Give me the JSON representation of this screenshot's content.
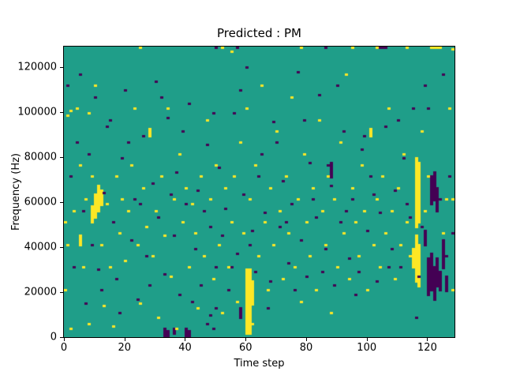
{
  "chart_data": {
    "type": "heatmap",
    "title": "Predicted : PM",
    "xlabel": "Time step",
    "ylabel": "Frequency (Hz)",
    "x_range": [
      0,
      129
    ],
    "y_range": [
      0,
      129000
    ],
    "x_ticks": [
      0,
      20,
      40,
      60,
      80,
      100,
      120
    ],
    "y_ticks": [
      0,
      20000,
      40000,
      60000,
      80000,
      100000,
      120000
    ],
    "grid_size": [
      129,
      128
    ],
    "colors": {
      "background": "#1f9e89",
      "yellow": "#fde725",
      "purple": "#440154",
      "axis": "#000000"
    },
    "yellow_runs": [
      [
        60,
        1,
        29
      ],
      [
        61,
        1,
        29
      ],
      [
        62,
        14,
        24
      ],
      [
        116,
        48,
        78
      ],
      [
        117,
        50,
        76
      ],
      [
        116,
        24,
        44
      ],
      [
        117,
        22,
        40
      ],
      [
        115,
        30,
        38
      ],
      [
        10,
        52,
        62
      ],
      [
        11,
        55,
        66
      ],
      [
        12,
        58,
        64
      ],
      [
        9,
        50,
        57
      ],
      [
        5,
        40,
        44
      ],
      [
        28,
        88,
        91
      ],
      [
        101,
        88,
        91
      ]
    ],
    "purple_runs": [
      [
        33,
        0,
        3
      ],
      [
        34,
        0,
        2
      ],
      [
        36,
        1,
        3
      ],
      [
        40,
        0,
        3
      ],
      [
        41,
        0,
        2
      ],
      [
        120,
        18,
        34
      ],
      [
        121,
        20,
        36
      ],
      [
        122,
        16,
        30
      ],
      [
        123,
        22,
        34
      ],
      [
        124,
        20,
        28
      ],
      [
        121,
        58,
        70
      ],
      [
        122,
        60,
        72
      ],
      [
        123,
        55,
        65
      ],
      [
        119,
        40,
        46
      ],
      [
        125,
        30,
        42
      ],
      [
        126,
        20,
        26
      ],
      [
        88,
        70,
        76
      ],
      [
        58,
        8,
        12
      ]
    ],
    "yellow_cells": [
      [
        0,
        20
      ],
      [
        0,
        50
      ],
      [
        1,
        40
      ],
      [
        1,
        97
      ],
      [
        2,
        3
      ],
      [
        2,
        99
      ],
      [
        3,
        55
      ],
      [
        4,
        100
      ],
      [
        5,
        75
      ],
      [
        6,
        30
      ],
      [
        7,
        60
      ],
      [
        8,
        5
      ],
      [
        8,
        98
      ],
      [
        9,
        70
      ],
      [
        10,
        110
      ],
      [
        12,
        40
      ],
      [
        13,
        13
      ],
      [
        14,
        58
      ],
      [
        15,
        30
      ],
      [
        16,
        4
      ],
      [
        17,
        70
      ],
      [
        18,
        45
      ],
      [
        19,
        60
      ],
      [
        20,
        33
      ],
      [
        21,
        55
      ],
      [
        22,
        75
      ],
      [
        23,
        100
      ],
      [
        24,
        40
      ],
      [
        25,
        14
      ],
      [
        25,
        127
      ],
      [
        26,
        65
      ],
      [
        27,
        48
      ],
      [
        28,
        90
      ],
      [
        29,
        35
      ],
      [
        30,
        55
      ],
      [
        31,
        8
      ],
      [
        32,
        70
      ],
      [
        33,
        44
      ],
      [
        34,
        100
      ],
      [
        35,
        26
      ],
      [
        36,
        60
      ],
      [
        37,
        3
      ],
      [
        38,
        80
      ],
      [
        39,
        50
      ],
      [
        40,
        65
      ],
      [
        41,
        30
      ],
      [
        42,
        58
      ],
      [
        43,
        45
      ],
      [
        44,
        12
      ],
      [
        45,
        70
      ],
      [
        46,
        35
      ],
      [
        47,
        95
      ],
      [
        48,
        60
      ],
      [
        49,
        25
      ],
      [
        50,
        75
      ],
      [
        51,
        40
      ],
      [
        52,
        10
      ],
      [
        52,
        127
      ],
      [
        53,
        65
      ],
      [
        54,
        30
      ],
      [
        55,
        50
      ],
      [
        55,
        125
      ],
      [
        56,
        70
      ],
      [
        57,
        15
      ],
      [
        58,
        85
      ],
      [
        59,
        45
      ],
      [
        60,
        100
      ],
      [
        61,
        60
      ],
      [
        62,
        5
      ],
      [
        63,
        75
      ],
      [
        64,
        35
      ],
      [
        65,
        110
      ],
      [
        66,
        50
      ],
      [
        67,
        20
      ],
      [
        68,
        65
      ],
      [
        69,
        40
      ],
      [
        70,
        90
      ],
      [
        71,
        55
      ],
      [
        72,
        25
      ],
      [
        73,
        70
      ],
      [
        74,
        45
      ],
      [
        75,
        105
      ],
      [
        76,
        30
      ],
      [
        77,
        60
      ],
      [
        78,
        15
      ],
      [
        78,
        127
      ],
      [
        79,
        80
      ],
      [
        80,
        50
      ],
      [
        81,
        35
      ],
      [
        82,
        65
      ],
      [
        83,
        20
      ],
      [
        84,
        95
      ],
      [
        85,
        55
      ],
      [
        86,
        40
      ],
      [
        87,
        70
      ],
      [
        88,
        10
      ],
      [
        89,
        60
      ],
      [
        90,
        30
      ],
      [
        91,
        85
      ],
      [
        92,
        45
      ],
      [
        93,
        115
      ],
      [
        94,
        25
      ],
      [
        95,
        65
      ],
      [
        95,
        127
      ],
      [
        96,
        50
      ],
      [
        97,
        35
      ],
      [
        98,
        75
      ],
      [
        99,
        55
      ],
      [
        100,
        20
      ],
      [
        101,
        90
      ],
      [
        102,
        40
      ],
      [
        103,
        60
      ],
      [
        103,
        127
      ],
      [
        104,
        30
      ],
      [
        105,
        70
      ],
      [
        106,
        45
      ],
      [
        107,
        100
      ],
      [
        108,
        55
      ],
      [
        109,
        25
      ],
      [
        110,
        65
      ],
      [
        111,
        40
      ],
      [
        112,
        80
      ],
      [
        113,
        50
      ],
      [
        113,
        127
      ],
      [
        114,
        35
      ],
      [
        118,
        90
      ],
      [
        119,
        55
      ],
      [
        120,
        70
      ],
      [
        121,
        127
      ],
      [
        122,
        127
      ],
      [
        123,
        127
      ],
      [
        124,
        127
      ],
      [
        125,
        45
      ],
      [
        126,
        60
      ],
      [
        127,
        100
      ],
      [
        128,
        20
      ],
      [
        128,
        60
      ],
      [
        128,
        126
      ]
    ],
    "purple_cells": [
      [
        1,
        110
      ],
      [
        2,
        70
      ],
      [
        3,
        30
      ],
      [
        4,
        85
      ],
      [
        5,
        115
      ],
      [
        6,
        55
      ],
      [
        7,
        14
      ],
      [
        8,
        80
      ],
      [
        9,
        40
      ],
      [
        10,
        105
      ],
      [
        11,
        29
      ],
      [
        12,
        20
      ],
      [
        13,
        63
      ],
      [
        14,
        92
      ],
      [
        15,
        95
      ],
      [
        16,
        50
      ],
      [
        17,
        25
      ],
      [
        18,
        10
      ],
      [
        19,
        78
      ],
      [
        20,
        108
      ],
      [
        21,
        85
      ],
      [
        22,
        42
      ],
      [
        23,
        60
      ],
      [
        24,
        16
      ],
      [
        25,
        58
      ],
      [
        26,
        88
      ],
      [
        27,
        35
      ],
      [
        28,
        22
      ],
      [
        29,
        67
      ],
      [
        30,
        112
      ],
      [
        31,
        52
      ],
      [
        32,
        105
      ],
      [
        33,
        27
      ],
      [
        34,
        96
      ],
      [
        35,
        62
      ],
      [
        36,
        44
      ],
      [
        37,
        72
      ],
      [
        38,
        18
      ],
      [
        39,
        90
      ],
      [
        40,
        58
      ],
      [
        41,
        102
      ],
      [
        42,
        15
      ],
      [
        43,
        38
      ],
      [
        44,
        64
      ],
      [
        45,
        22
      ],
      [
        46,
        55
      ],
      [
        47,
        5
      ],
      [
        47,
        84
      ],
      [
        48,
        9
      ],
      [
        48,
        48
      ],
      [
        49,
        3
      ],
      [
        49,
        98
      ],
      [
        50,
        12
      ],
      [
        50,
        30
      ],
      [
        50,
        127
      ],
      [
        51,
        74
      ],
      [
        52,
        44
      ],
      [
        53,
        56
      ],
      [
        54,
        20
      ],
      [
        55,
        30
      ],
      [
        56,
        98
      ],
      [
        57,
        36
      ],
      [
        57,
        127
      ],
      [
        58,
        108
      ],
      [
        59,
        62
      ],
      [
        60,
        118
      ],
      [
        61,
        40
      ],
      [
        62,
        46
      ],
      [
        63,
        28
      ],
      [
        64,
        70
      ],
      [
        65,
        80
      ],
      [
        66,
        54
      ],
      [
        67,
        12
      ],
      [
        68,
        24
      ],
      [
        69,
        94
      ],
      [
        70,
        85
      ],
      [
        71,
        48
      ],
      [
        72,
        68
      ],
      [
        73,
        50
      ],
      [
        74,
        32
      ],
      [
        75,
        58
      ],
      [
        76,
        20
      ],
      [
        77,
        116
      ],
      [
        78,
        42
      ],
      [
        79,
        95
      ],
      [
        80,
        26
      ],
      [
        81,
        76
      ],
      [
        82,
        60
      ],
      [
        83,
        52
      ],
      [
        84,
        106
      ],
      [
        85,
        28
      ],
      [
        86,
        38
      ],
      [
        86,
        127
      ],
      [
        87,
        75
      ],
      [
        88,
        66
      ],
      [
        89,
        22
      ],
      [
        90,
        110
      ],
      [
        91,
        50
      ],
      [
        92,
        90
      ],
      [
        93,
        55
      ],
      [
        94,
        34
      ],
      [
        95,
        60
      ],
      [
        96,
        18
      ],
      [
        97,
        28
      ],
      [
        98,
        82
      ],
      [
        99,
        88
      ],
      [
        100,
        46
      ],
      [
        101,
        70
      ],
      [
        102,
        62
      ],
      [
        103,
        24
      ],
      [
        104,
        54
      ],
      [
        104,
        127
      ],
      [
        105,
        127
      ],
      [
        106,
        92
      ],
      [
        106,
        127
      ],
      [
        107,
        30
      ],
      [
        108,
        38
      ],
      [
        109,
        64
      ],
      [
        110,
        95
      ],
      [
        111,
        30
      ],
      [
        112,
        78
      ],
      [
        113,
        58
      ],
      [
        114,
        52
      ],
      [
        115,
        100
      ],
      [
        116,
        8
      ],
      [
        117,
        26
      ],
      [
        118,
        48
      ],
      [
        119,
        110
      ],
      [
        120,
        100
      ],
      [
        124,
        60
      ],
      [
        125,
        115
      ],
      [
        126,
        35
      ],
      [
        127,
        70
      ],
      [
        128,
        45
      ]
    ]
  }
}
